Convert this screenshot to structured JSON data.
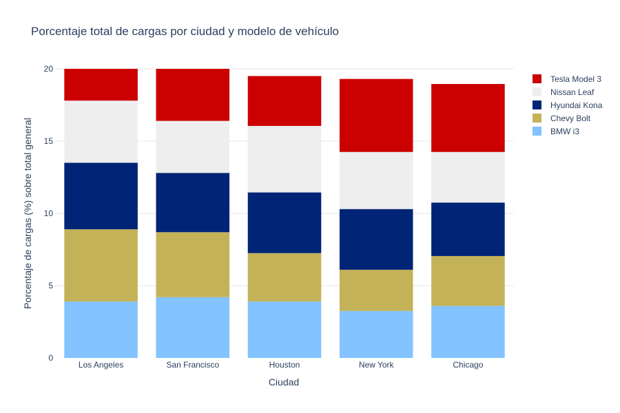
{
  "chart_data": {
    "type": "bar",
    "stacked": true,
    "title": "Porcentaje total de cargas por ciudad y modelo de vehículo",
    "xlabel": "Ciudad",
    "ylabel": "Porcentaje de cargas (%) sobre total general",
    "ylim": [
      0,
      20
    ],
    "yticks": [
      0,
      5,
      10,
      15,
      20
    ],
    "grid": true,
    "legend_position": "top-right",
    "categories": [
      "Los Angeles",
      "San Francisco",
      "Houston",
      "New York",
      "Chicago"
    ],
    "series": [
      {
        "name": "BMW i3",
        "color": "#83c3ff",
        "values": [
          3.9,
          4.2,
          3.9,
          3.25,
          3.6
        ]
      },
      {
        "name": "Chevy Bolt",
        "color": "#c4b259",
        "values": [
          5.0,
          4.5,
          3.35,
          2.85,
          3.45
        ]
      },
      {
        "name": "Hyundai Kona",
        "color": "#002577",
        "values": [
          4.6,
          4.1,
          4.2,
          4.2,
          3.7
        ]
      },
      {
        "name": "Nissan Leaf",
        "color": "#eeeeee",
        "values": [
          4.3,
          3.6,
          4.6,
          3.95,
          3.5
        ]
      },
      {
        "name": "Tesla Model 3",
        "color": "#cc0000",
        "values": [
          2.2,
          3.6,
          3.45,
          5.05,
          4.7
        ]
      }
    ]
  }
}
